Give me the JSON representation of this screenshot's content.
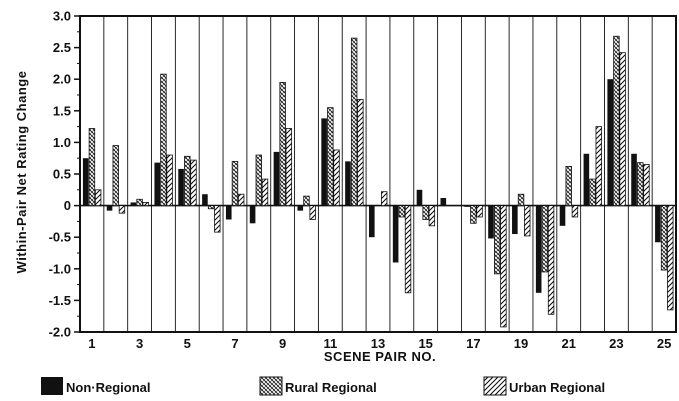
{
  "chart_data": {
    "type": "bar",
    "title": "",
    "xlabel": "SCENE PAIR NO.",
    "ylabel": "Within-Pair Net Rating Change",
    "ylim": [
      -2.0,
      3.0
    ],
    "yticks": [
      "3.0",
      "2.5",
      "2.0",
      "1.5",
      "1.0",
      "0.5",
      "0",
      "-0.5",
      "-1.0",
      "-1.5",
      "-2.0"
    ],
    "ytick_values": [
      3.0,
      2.5,
      2.0,
      1.5,
      1.0,
      0.5,
      0,
      -0.5,
      -1.0,
      -1.5,
      -2.0
    ],
    "categories": [
      1,
      2,
      3,
      4,
      5,
      6,
      7,
      8,
      9,
      10,
      11,
      12,
      13,
      14,
      15,
      16,
      17,
      18,
      19,
      20,
      21,
      22,
      23,
      24,
      25
    ],
    "x_tick_labels": [
      "1",
      "3",
      "5",
      "7",
      "9",
      "11",
      "13",
      "15",
      "17",
      "19",
      "21",
      "23",
      "25"
    ],
    "x_tick_positions": [
      1,
      3,
      5,
      7,
      9,
      11,
      13,
      15,
      17,
      19,
      21,
      23,
      25
    ],
    "vertical_gridlines": true,
    "legend_position": "bottom",
    "series": [
      {
        "name": "Non-Regional",
        "pattern": "solid",
        "values": [
          0.75,
          -0.08,
          0.05,
          0.68,
          0.58,
          0.18,
          -0.22,
          -0.28,
          0.85,
          -0.08,
          1.38,
          0.7,
          -0.5,
          -0.9,
          0.25,
          0.12,
          -0.02,
          -0.52,
          -0.45,
          -1.38,
          -0.32,
          0.82,
          2.0,
          0.82,
          -0.58
        ]
      },
      {
        "name": "Rural Regional",
        "pattern": "crosshatch",
        "values": [
          1.22,
          0.95,
          0.1,
          2.08,
          0.78,
          -0.05,
          0.7,
          0.8,
          1.95,
          0.15,
          1.55,
          2.65,
          0.0,
          -0.18,
          -0.22,
          0.0,
          -0.28,
          -1.08,
          0.18,
          -1.05,
          0.62,
          0.42,
          2.68,
          0.68,
          -1.02
        ]
      },
      {
        "name": "Urban Regional",
        "pattern": "diagonal",
        "values": [
          0.25,
          -0.12,
          0.05,
          0.8,
          0.72,
          -0.42,
          0.18,
          0.42,
          1.22,
          -0.22,
          0.88,
          1.68,
          0.22,
          -1.38,
          -0.32,
          0.0,
          -0.18,
          -1.92,
          -0.48,
          -1.72,
          -0.18,
          1.25,
          2.42,
          0.65,
          -1.65
        ]
      }
    ]
  },
  "legend": {
    "items": [
      {
        "label": "Non·Regional",
        "pattern": "solid"
      },
      {
        "label": "Rural Regional",
        "pattern": "crosshatch"
      },
      {
        "label": "Urban Regional",
        "pattern": "diagonal"
      }
    ]
  }
}
